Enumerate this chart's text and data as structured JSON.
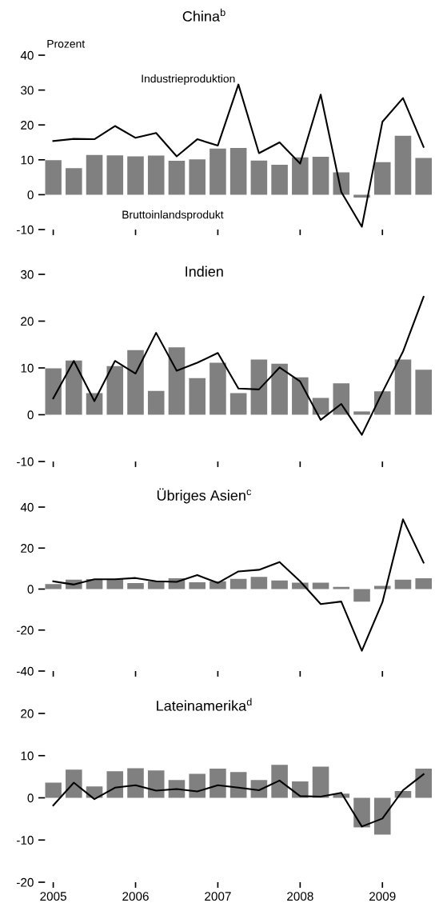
{
  "chart_data": [
    {
      "type": "bar",
      "title": "China$^{b}$",
      "annotations": [
        "Prozent"
      ],
      "x": [
        2005,
        2005.25,
        2005.5,
        2005.75,
        2006,
        2006.25,
        2006.5,
        2006.75,
        2007,
        2007.25,
        2007.5,
        2007.75,
        2008,
        2008.25,
        2008.5,
        2008.75,
        2009,
        2009.25,
        2009.5
      ],
      "series": [
        {
          "name": "Bruttoinlandsprodukt",
          "color": "#808080",
          "values": [
            9.9,
            7.6,
            11.4,
            11.3,
            11.0,
            11.2,
            9.7,
            10.1,
            13.2,
            13.4,
            9.8,
            8.6,
            10.7,
            10.9,
            6.4,
            -0.8,
            9.3,
            16.9,
            10.5
          ]
        },
        {
          "name": "Industrieproduktion",
          "type": "line",
          "color": "#000000",
          "values": [
            15.4,
            16.0,
            15.9,
            19.7,
            16.3,
            17.7,
            11.0,
            15.9,
            14.1,
            31.6,
            11.9,
            15.0,
            8.9,
            28.7,
            0.8,
            -9.2,
            20.9,
            27.7,
            13.7
          ]
        }
      ],
      "xlim": [
        2004.9,
        2009.6
      ],
      "xticks": [
        2005,
        2006,
        2007,
        2008,
        2009
      ],
      "ylim": [
        -10,
        40
      ],
      "yticks": [
        -10,
        0,
        10,
        20,
        30,
        40
      ],
      "tick_labels": "y",
      "grid": false,
      "legend": false
    },
    {
      "type": "bar",
      "title": "Indien",
      "x": [
        2005,
        2005.25,
        2005.5,
        2005.75,
        2006,
        2006.25,
        2006.5,
        2006.75,
        2007,
        2007.25,
        2007.5,
        2007.75,
        2008,
        2008.25,
        2008.5,
        2008.75,
        2009,
        2009.25,
        2009.5
      ],
      "series": [
        {
          "color": "#808080",
          "values": [
            9.9,
            11.6,
            4.6,
            10.4,
            13.8,
            5.1,
            14.4,
            7.8,
            11.1,
            4.6,
            11.8,
            10.9,
            8.0,
            3.6,
            6.7,
            0.7,
            5.0,
            11.8,
            9.6
          ]
        },
        {
          "type": "line",
          "color": "#000000",
          "values": [
            3.5,
            11.5,
            2.9,
            11.5,
            8.8,
            17.5,
            9.4,
            11.1,
            13.2,
            5.6,
            5.4,
            10.1,
            7.1,
            -1.1,
            2.3,
            -4.3,
            4.8,
            13.5,
            25.2
          ]
        }
      ],
      "xlim": [
        2004.9,
        2009.6
      ],
      "xticks": [
        2005,
        2006,
        2007,
        2008,
        2009
      ],
      "ylim": [
        -10,
        30
      ],
      "yticks": [
        -10,
        0,
        10,
        20,
        30
      ],
      "tick_labels": "y",
      "grid": false,
      "legend": false
    },
    {
      "type": "bar",
      "title": "Übriges Asien$^{c}$",
      "x": [
        2005,
        2005.25,
        2005.5,
        2005.75,
        2006,
        2006.25,
        2006.5,
        2006.75,
        2007,
        2007.25,
        2007.5,
        2007.75,
        2008,
        2008.25,
        2008.5,
        2008.75,
        2009,
        2009.25,
        2009.5
      ],
      "series": [
        {
          "color": "#808080",
          "values": [
            2.4,
            4.6,
            4.9,
            4.9,
            2.9,
            3.8,
            5.3,
            3.3,
            3.8,
            5.0,
            6.0,
            4.2,
            3.1,
            3.1,
            1.1,
            -6.1,
            1.6,
            4.6,
            5.3
          ]
        },
        {
          "type": "line",
          "color": "#000000",
          "values": [
            3.8,
            2.2,
            4.8,
            4.8,
            5.4,
            3.8,
            3.5,
            6.8,
            3.0,
            8.6,
            9.4,
            13.2,
            3.8,
            -7.3,
            -6.1,
            -30.1,
            -6.4,
            34.0,
            12.9
          ]
        }
      ],
      "xlim": [
        2004.9,
        2009.6
      ],
      "xticks": [
        2005,
        2006,
        2007,
        2008,
        2009
      ],
      "ylim": [
        -40,
        40
      ],
      "yticks": [
        -40,
        -20,
        0,
        20,
        40
      ],
      "tick_labels": "y",
      "grid": false,
      "legend": false
    },
    {
      "type": "bar",
      "title": "Lateinamerika$^{d}$",
      "x": [
        2005,
        2005.25,
        2005.5,
        2005.75,
        2006,
        2006.25,
        2006.5,
        2006.75,
        2007,
        2007.25,
        2007.5,
        2007.75,
        2008,
        2008.25,
        2008.5,
        2008.75,
        2009,
        2009.25,
        2009.5
      ],
      "series": [
        {
          "color": "#808080",
          "values": [
            3.6,
            6.7,
            2.7,
            6.3,
            7.0,
            6.5,
            4.2,
            5.7,
            6.9,
            6.1,
            4.2,
            7.8,
            3.9,
            7.4,
            1.0,
            -7.0,
            -8.7,
            1.6,
            6.9
          ]
        },
        {
          "type": "line",
          "color": "#000000",
          "values": [
            -1.8,
            3.6,
            -0.3,
            2.4,
            3.0,
            1.7,
            2.1,
            1.5,
            3.0,
            2.4,
            1.8,
            4.1,
            0.4,
            0.3,
            1.2,
            -6.8,
            -4.9,
            1.8,
            5.6
          ]
        }
      ],
      "xlim": [
        2004.9,
        2009.6
      ],
      "xticks": [
        2005,
        2006,
        2007,
        2008,
        2009
      ],
      "ylim": [
        -20,
        20
      ],
      "yticks": [
        -20,
        -10,
        0,
        10,
        20
      ],
      "grid": false,
      "legend": false
    }
  ]
}
